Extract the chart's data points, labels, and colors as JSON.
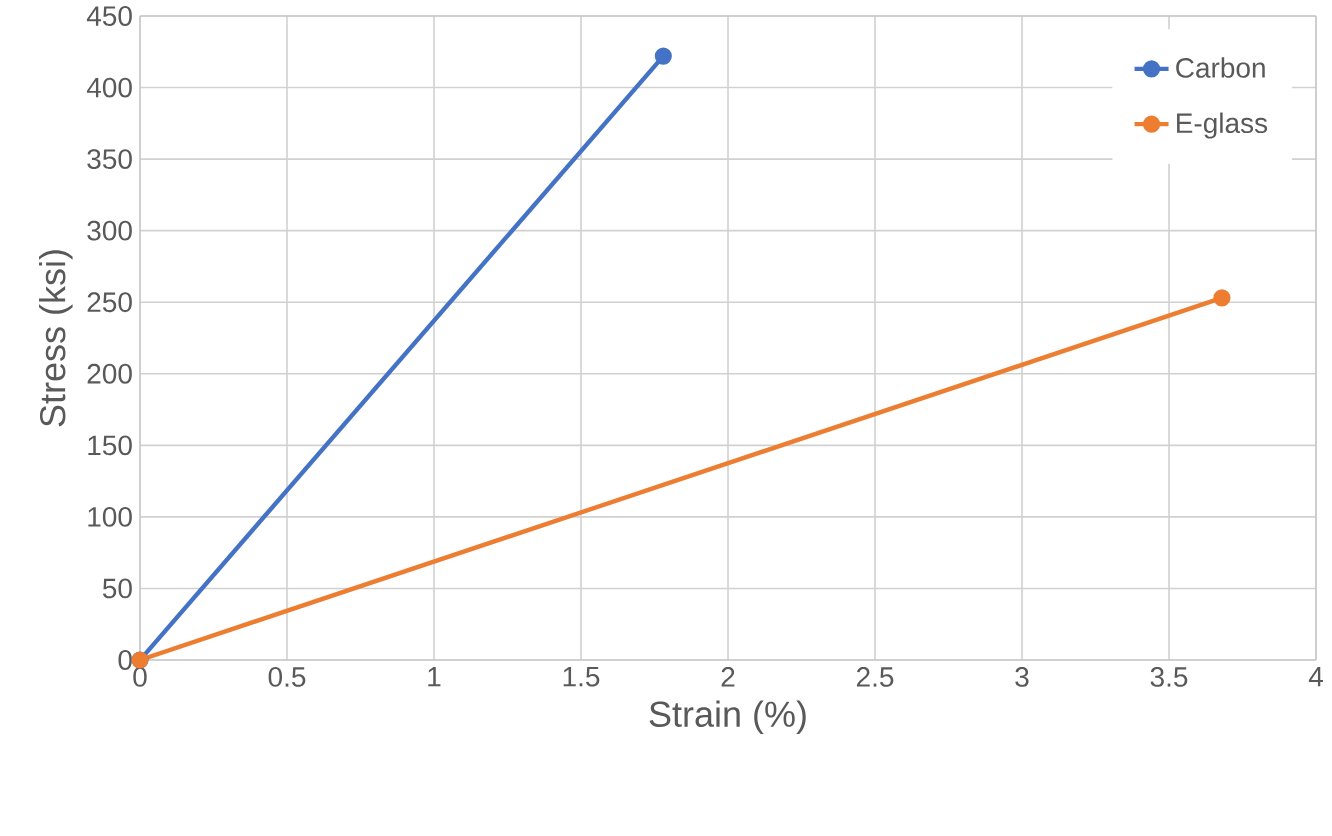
{
  "chart_data": {
    "type": "line",
    "xlabel": "Strain (%)",
    "ylabel": "Stress (ksi)",
    "xlim": [
      0,
      4
    ],
    "xticks": [
      0,
      0.5,
      1,
      1.5,
      2,
      2.5,
      3,
      3.5,
      4
    ],
    "ylim": [
      0,
      450
    ],
    "yticks": [
      0,
      50,
      100,
      150,
      200,
      250,
      300,
      350,
      400,
      450
    ],
    "grid": true,
    "legend": "top right",
    "marker": "circle",
    "line_style": "solid",
    "series": [
      {
        "name": "Carbon",
        "color": "#4472c4",
        "x": [
          0,
          1.78
        ],
        "values": [
          0,
          422
        ]
      },
      {
        "name": "E-glass",
        "color": "#ed7d31",
        "x": [
          0,
          3.68
        ],
        "values": [
          0,
          253
        ]
      }
    ]
  }
}
